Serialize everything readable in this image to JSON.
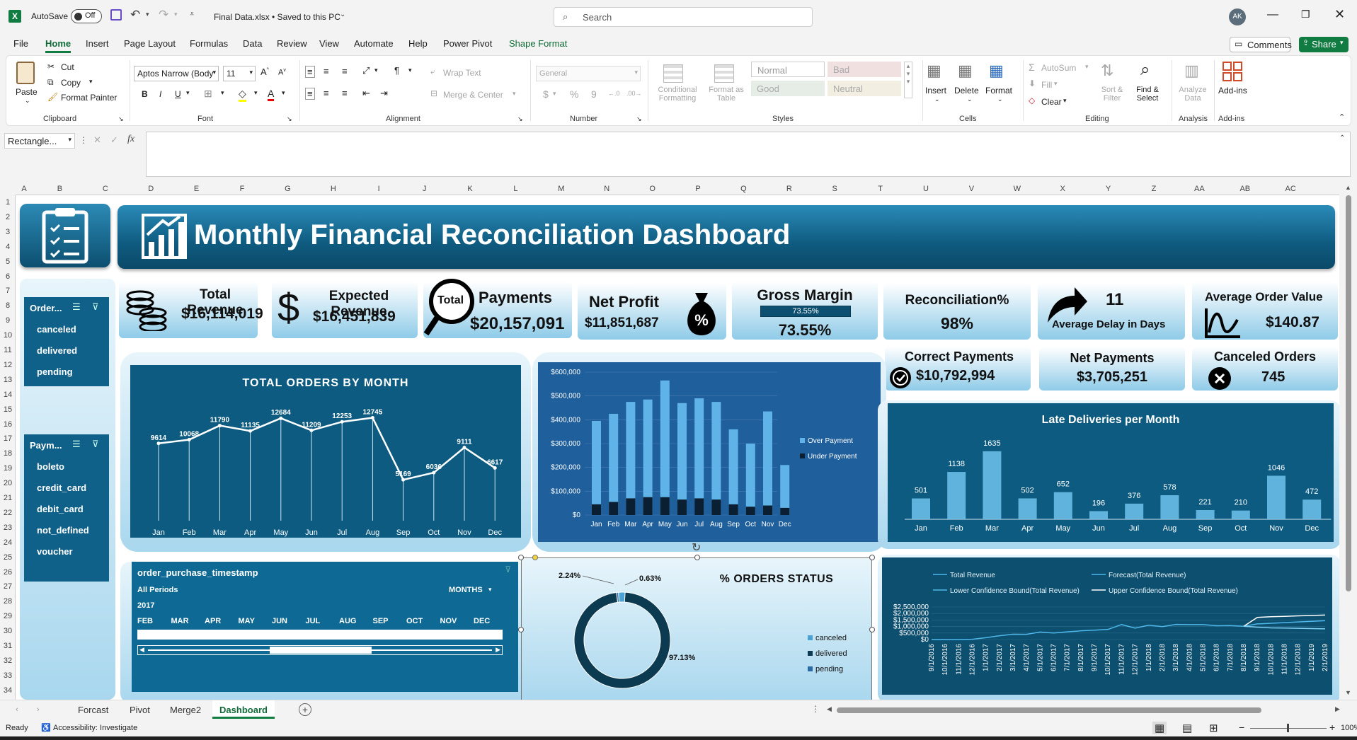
{
  "titlebar": {
    "autosave_label": "AutoSave",
    "autosave_state": "Off",
    "filename": "Final Data.xlsx • Saved to this PC",
    "search_placeholder": "Search",
    "avatar": "AK"
  },
  "menu": [
    "File",
    "Home",
    "Insert",
    "Page Layout",
    "Formulas",
    "Data",
    "Review",
    "View",
    "Automate",
    "Help",
    "Power Pivot",
    "Shape Format"
  ],
  "menu_active": "Home",
  "menu_buttons": {
    "comments": "Comments",
    "share": "Share"
  },
  "ribbon": {
    "clipboard": {
      "paste": "Paste",
      "cut": "Cut",
      "copy": "Copy",
      "format_painter": "Format Painter",
      "label": "Clipboard"
    },
    "font": {
      "name": "Aptos Narrow (Body",
      "size": "11",
      "label": "Font"
    },
    "alignment": {
      "wrap": "Wrap Text",
      "merge": "Merge & Center",
      "label": "Alignment"
    },
    "number": {
      "format": "General",
      "label": "Number"
    },
    "styles": {
      "conditional": "Conditional Formatting",
      "format_table": "Format as Table",
      "normal": "Normal",
      "bad": "Bad",
      "good": "Good",
      "neutral": "Neutral",
      "label": "Styles"
    },
    "cells": {
      "insert": "Insert",
      "delete": "Delete",
      "format": "Format",
      "label": "Cells"
    },
    "editing": {
      "autosum": "AutoSum",
      "fill": "Fill",
      "clear": "Clear",
      "sort": "Sort & Filter",
      "find": "Find & Select",
      "label": "Editing"
    },
    "analysis": {
      "analyze": "Analyze Data",
      "label": "Analysis"
    },
    "addins": {
      "addins": "Add-ins",
      "label": "Add-ins"
    }
  },
  "formula_bar": {
    "name_box": "Rectangle...",
    "fx": "fx",
    "content": ""
  },
  "columns": [
    "A",
    "B",
    "C",
    "D",
    "E",
    "F",
    "G",
    "H",
    "I",
    "J",
    "K",
    "L",
    "M",
    "N",
    "O",
    "P",
    "Q",
    "R",
    "S",
    "T",
    "U",
    "V",
    "W",
    "X",
    "Y",
    "Z",
    "AA",
    "AB",
    "AC"
  ],
  "rows": [
    "1",
    "2",
    "3",
    "4",
    "5",
    "6",
    "7",
    "8",
    "9",
    "10",
    "11",
    "12",
    "13",
    "14",
    "15",
    "16",
    "17",
    "18",
    "19",
    "20",
    "21",
    "22",
    "23",
    "24",
    "25",
    "26",
    "27",
    "28",
    "29",
    "30",
    "31",
    "32",
    "33",
    "34"
  ],
  "dashboard": {
    "title": "Monthly Financial Reconciliation Dashboard",
    "kpis": {
      "total_revenue": {
        "label": "Total Revenue",
        "value": "$16,114,019"
      },
      "expected_revenue": {
        "label": "Expected Revenue",
        "value": "$16,451,839"
      },
      "payments": {
        "label": "Payments",
        "value": "$20,157,091",
        "badge": "Total"
      },
      "net_profit": {
        "label": "Net Profit",
        "value": "$11,851,687"
      },
      "gross_margin": {
        "label": "Gross Margin",
        "value": "73.55%",
        "bar": "73.55%",
        "fraction": 0.7355
      },
      "reconciliation": {
        "label": "Reconciliation%",
        "value": "98%"
      },
      "avg_delay": {
        "label": "Average Delay in Days",
        "value": "11"
      },
      "avg_order": {
        "label": "Average Order Value",
        "value": "$140.87"
      },
      "correct_payments": {
        "label": "Correct Payments",
        "value": "$10,792,994"
      },
      "net_payments": {
        "label": "Net Payments",
        "value": "$3,705,251"
      },
      "canceled_orders": {
        "label": "Canceled Orders",
        "value": "745"
      }
    },
    "slicer_order": {
      "title": "Order...",
      "items": [
        "canceled",
        "delivered",
        "pending"
      ]
    },
    "slicer_payment": {
      "title": "Paym...",
      "items": [
        "boleto",
        "credit_card",
        "debit_card",
        "not_defined",
        "voucher"
      ]
    },
    "timeline": {
      "title": "order_purchase_timestamp",
      "period": "All Periods",
      "unit": "MONTHS",
      "year": "2017",
      "months": [
        "FEB",
        "MAR",
        "APR",
        "MAY",
        "JUN",
        "JUL",
        "AUG",
        "SEP",
        "OCT",
        "NOV",
        "DEC"
      ]
    }
  },
  "chart_data": [
    {
      "type": "line",
      "title": "TOTAL ORDERS BY MONTH",
      "categories": [
        "Jan",
        "Feb",
        "Mar",
        "Apr",
        "May",
        "Jun",
        "Jul",
        "Aug",
        "Sep",
        "Oct",
        "Nov",
        "Dec"
      ],
      "values": [
        9614,
        10068,
        11790,
        11135,
        12684,
        11209,
        12253,
        12745,
        5169,
        6036,
        9111,
        6617
      ],
      "color": "#ffffff"
    },
    {
      "type": "bar",
      "title": "",
      "categories": [
        "Jan",
        "Feb",
        "Mar",
        "Apr",
        "May",
        "Jun",
        "Jul",
        "Aug",
        "Sep",
        "Oct",
        "Nov",
        "Dec"
      ],
      "yticks": [
        "$0",
        "$100,000",
        "$200,000",
        "$300,000",
        "$400,000",
        "$500,000",
        "$600,000"
      ],
      "ylim": [
        0,
        600000
      ],
      "series": [
        {
          "name": "Over Payment",
          "values": [
            395000,
            425000,
            475000,
            485000,
            565000,
            470000,
            490000,
            475000,
            360000,
            300000,
            435000,
            210000
          ],
          "color": "#5fb3e6"
        },
        {
          "name": "Under Payment",
          "values": [
            45000,
            55000,
            70000,
            75000,
            75000,
            65000,
            70000,
            65000,
            45000,
            35000,
            40000,
            30000
          ],
          "color": "#0b1f33"
        }
      ],
      "legend": "right"
    },
    {
      "type": "bar",
      "title": "Late Deliveries per Month",
      "categories": [
        "Jan",
        "Feb",
        "Mar",
        "Apr",
        "May",
        "Jun",
        "Jul",
        "Aug",
        "Sep",
        "Oct",
        "Nov",
        "Dec"
      ],
      "values": [
        501,
        1138,
        1635,
        502,
        652,
        196,
        376,
        578,
        221,
        210,
        1046,
        472
      ],
      "color": "#6ec3ec"
    },
    {
      "type": "pie",
      "title": "% ORDERS STATUS",
      "categories": [
        "canceled",
        "delivered",
        "pending"
      ],
      "values": [
        2.24,
        97.13,
        0.63
      ],
      "labels": [
        "2.24%",
        "97.13%",
        "0.63%"
      ],
      "colors": [
        "#4aa3d4",
        "#0c3a50",
        "#2b6aa3"
      ]
    },
    {
      "type": "line",
      "title": "",
      "series": [
        {
          "name": "Total Revenue"
        },
        {
          "name": "Forecast(Total Revenue)"
        },
        {
          "name": "Lower Confidence Bound(Total Revenue)"
        },
        {
          "name": "Upper Confidence Bound(Total Revenue)"
        }
      ],
      "yticks": [
        "$0",
        "$500,000",
        "$1,000,000",
        "$1,500,000",
        "$2,000,000",
        "$2,500,000"
      ],
      "categories": [
        "9/1/2016",
        "10/1/2016",
        "11/1/2016",
        "12/1/2016",
        "1/1/2017",
        "2/1/2017",
        "3/1/2017",
        "4/1/2017",
        "5/1/2017",
        "6/1/2017",
        "7/1/2017",
        "8/1/2017",
        "9/1/2017",
        "10/1/2017",
        "11/1/2017",
        "12/1/2017",
        "1/1/2018",
        "2/1/2018",
        "3/1/2018",
        "4/1/2018",
        "5/1/2018",
        "6/1/2018",
        "7/1/2018",
        "8/1/2018",
        "9/1/2018",
        "10/1/2018",
        "11/1/2018",
        "12/1/2018",
        "1/1/2019",
        "2/1/2019"
      ],
      "values": [
        0,
        0,
        0,
        20000,
        140000,
        290000,
        410000,
        400000,
        580000,
        500000,
        590000,
        670000,
        720000,
        780000,
        1150000,
        880000,
        1100000,
        990000,
        1160000,
        1150000,
        1150000,
        1060000,
        1070000,
        1020000,
        1200000,
        1250000,
        1300000,
        1350000,
        1400000,
        1450000
      ],
      "upper": [
        null,
        null,
        null,
        null,
        null,
        null,
        null,
        null,
        null,
        null,
        null,
        null,
        null,
        null,
        null,
        null,
        null,
        null,
        null,
        null,
        null,
        null,
        null,
        1020000,
        1700000,
        1750000,
        1780000,
        1820000,
        1850000,
        1880000
      ],
      "lower": [
        null,
        null,
        null,
        null,
        null,
        null,
        null,
        null,
        null,
        null,
        null,
        null,
        null,
        null,
        null,
        null,
        null,
        null,
        null,
        null,
        null,
        null,
        null,
        1020000,
        950000,
        900000,
        880000,
        860000,
        840000,
        820000
      ],
      "ylim": [
        0,
        2500000
      ],
      "legend": "top"
    }
  ],
  "sheet_tabs": [
    "Forcast",
    "Pivot",
    "Merge2",
    "Dashboard"
  ],
  "active_tab": "Dashboard",
  "status": {
    "ready": "Ready",
    "accessibility": "Accessibility: Investigate",
    "zoom": "100%"
  }
}
